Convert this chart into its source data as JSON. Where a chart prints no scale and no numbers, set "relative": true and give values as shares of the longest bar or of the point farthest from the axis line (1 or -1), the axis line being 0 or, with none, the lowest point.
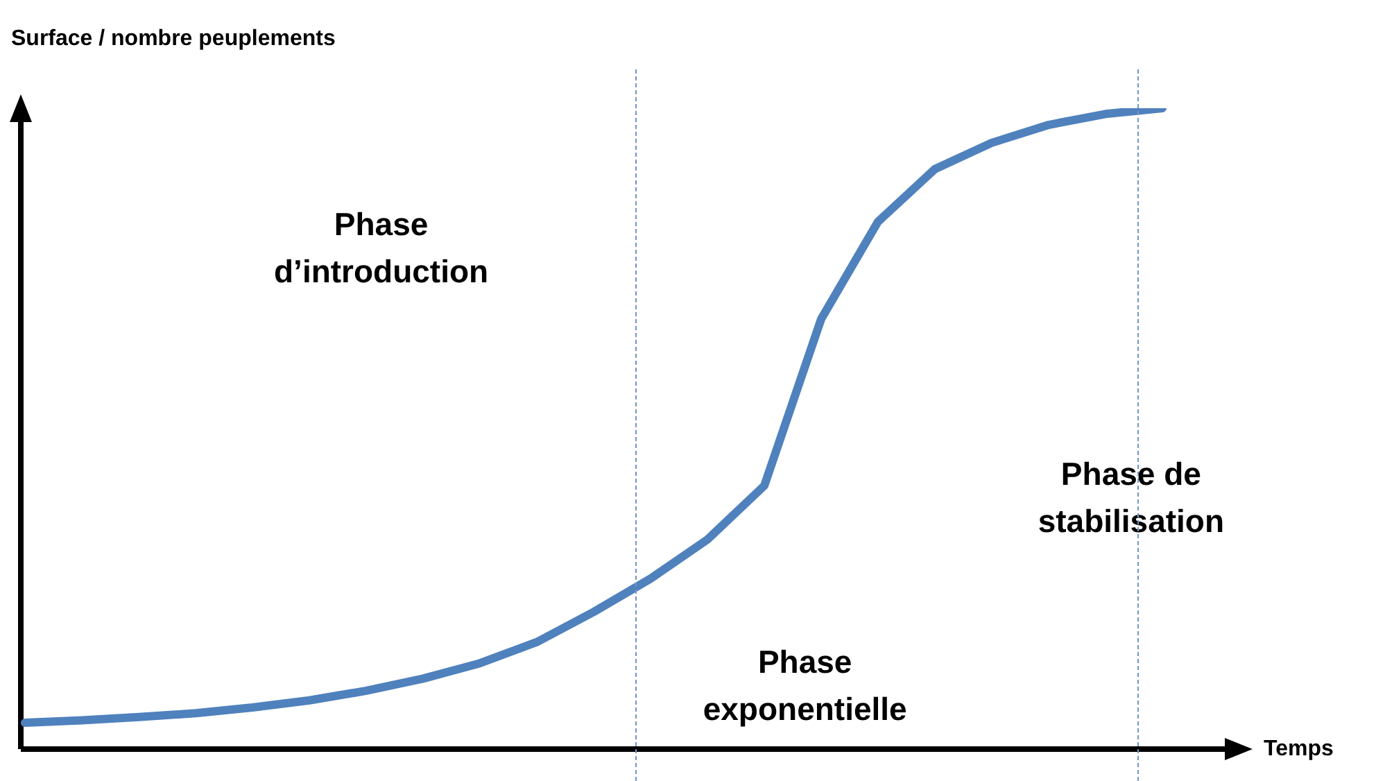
{
  "chart_data": {
    "type": "line",
    "relative": true,
    "xlabel": "Temps",
    "ylabel": "Surface / nombre peuplements",
    "categories": [
      null,
      null,
      null,
      null,
      null,
      null,
      null,
      null,
      null,
      null,
      null,
      null,
      null,
      null,
      null,
      null,
      null,
      null,
      null,
      null,
      null
    ],
    "legend": false,
    "marker": "none",
    "line_style": "solid",
    "series": [
      {
        "color": "#4f81bd",
        "values": [
          0.041,
          0.045,
          0.05,
          0.056,
          0.065,
          0.076,
          0.091,
          0.11,
          0.134,
          0.167,
          0.214,
          0.266,
          0.327,
          0.411,
          0.671,
          0.823,
          0.905,
          0.946,
          0.974,
          0.991,
          1
        ]
      }
    ],
    "annotations": [
      "Phase\nd’introduction",
      "Phase\nexponentielle",
      "Phase de\nstabilisation"
    ]
  }
}
